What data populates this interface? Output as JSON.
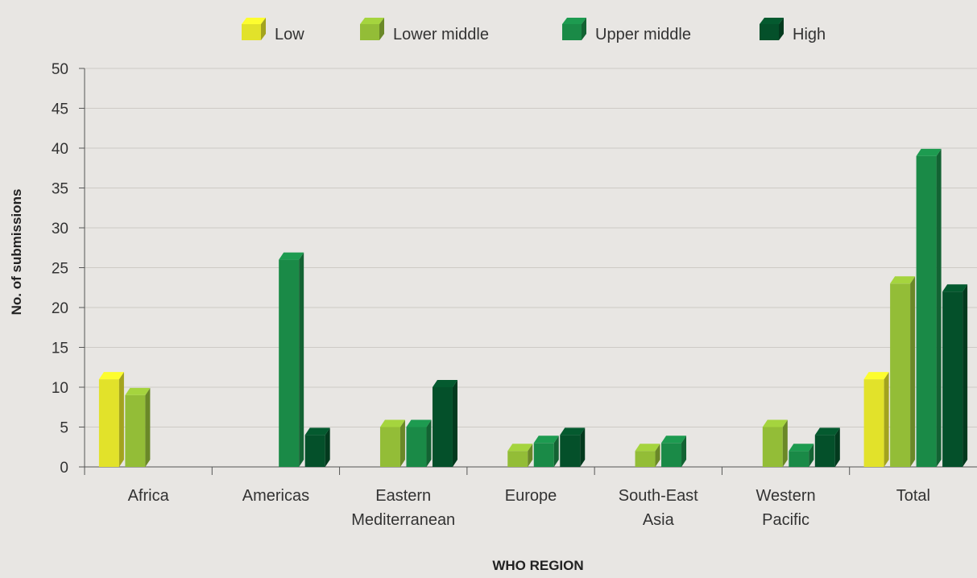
{
  "chart_data": {
    "type": "bar",
    "xlabel": "WHO REGION",
    "ylabel": "No. of submissions",
    "ylim": [
      0,
      50
    ],
    "yticks": [
      0,
      5,
      10,
      15,
      20,
      25,
      30,
      35,
      40,
      45,
      50
    ],
    "categories": [
      [
        "Africa"
      ],
      [
        "Americas"
      ],
      [
        "Eastern",
        "Mediterranean"
      ],
      [
        "Europe"
      ],
      [
        "South-East",
        "Asia"
      ],
      [
        "Western",
        "Pacific"
      ],
      [
        "Total"
      ]
    ],
    "series": [
      {
        "name": "Low",
        "color": "#e2e22a",
        "values": [
          11,
          0,
          0,
          0,
          0,
          0,
          11
        ]
      },
      {
        "name": "Lower middle",
        "color": "#93bd37",
        "values": [
          9,
          0,
          5,
          2,
          2,
          5,
          23
        ]
      },
      {
        "name": "Upper middle",
        "color": "#1a8a47",
        "values": [
          0,
          26,
          5,
          3,
          3,
          2,
          39
        ]
      },
      {
        "name": "High",
        "color": "#04502a",
        "values": [
          0,
          4,
          10,
          4,
          0,
          4,
          22
        ]
      }
    ],
    "legend_position": "top-center",
    "grid": true,
    "style": "3d-bars"
  }
}
